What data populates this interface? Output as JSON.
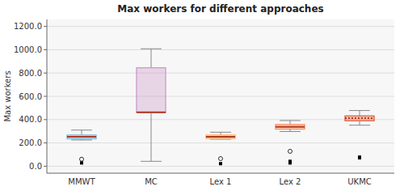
{
  "chart_data": {
    "type": "box",
    "title": "Max workers for different approaches",
    "ylabel": "Max workers",
    "categories": [
      "MMWT",
      "MC",
      "Lex 1",
      "Lex 2",
      "UKMC"
    ],
    "boxes": [
      {
        "q1": 235,
        "median": 253,
        "q3": 268,
        "whislo": 225,
        "whishi": 310,
        "fliers_open": [
          60
        ],
        "fliers_filled": [
          28
        ],
        "color": "#7ab8d9",
        "line_style": "solid"
      },
      {
        "q1": 460,
        "median": 462,
        "q3": 845,
        "whislo": 42,
        "whishi": 1008,
        "fliers_open": [],
        "fliers_filled": [],
        "color": "#c994c7",
        "line_style": "solid"
      },
      {
        "q1": 238,
        "median": 253,
        "q3": 268,
        "whislo": 232,
        "whishi": 292,
        "fliers_open": [
          65
        ],
        "fliers_filled": [
          22
        ],
        "color": "#fdae6b",
        "line_style": "solid"
      },
      {
        "q1": 318,
        "median": 338,
        "q3": 358,
        "whislo": 298,
        "whishi": 392,
        "fliers_open": [
          128
        ],
        "fliers_filled": [
          42,
          28
        ],
        "color": "#fc8d62",
        "line_style": "solid"
      },
      {
        "q1": 390,
        "median": 412,
        "q3": 432,
        "whislo": 352,
        "whishi": 478,
        "fliers_open": [],
        "fliers_filled": [
          78,
          72
        ],
        "color": "#e05c3a",
        "line_style": "dotted"
      }
    ],
    "ylim": [
      -60,
      1260
    ],
    "yticks": [
      {
        "value": 0,
        "label": "0.0"
      },
      {
        "value": 200,
        "label": "200.0"
      },
      {
        "value": 400,
        "label": "400.0"
      },
      {
        "value": 600,
        "label": "600.0"
      },
      {
        "value": 800,
        "label": "800.0"
      },
      {
        "value": 1000,
        "label": "1000.0"
      },
      {
        "value": 1200,
        "label": "1200.0"
      }
    ],
    "grid": true
  }
}
